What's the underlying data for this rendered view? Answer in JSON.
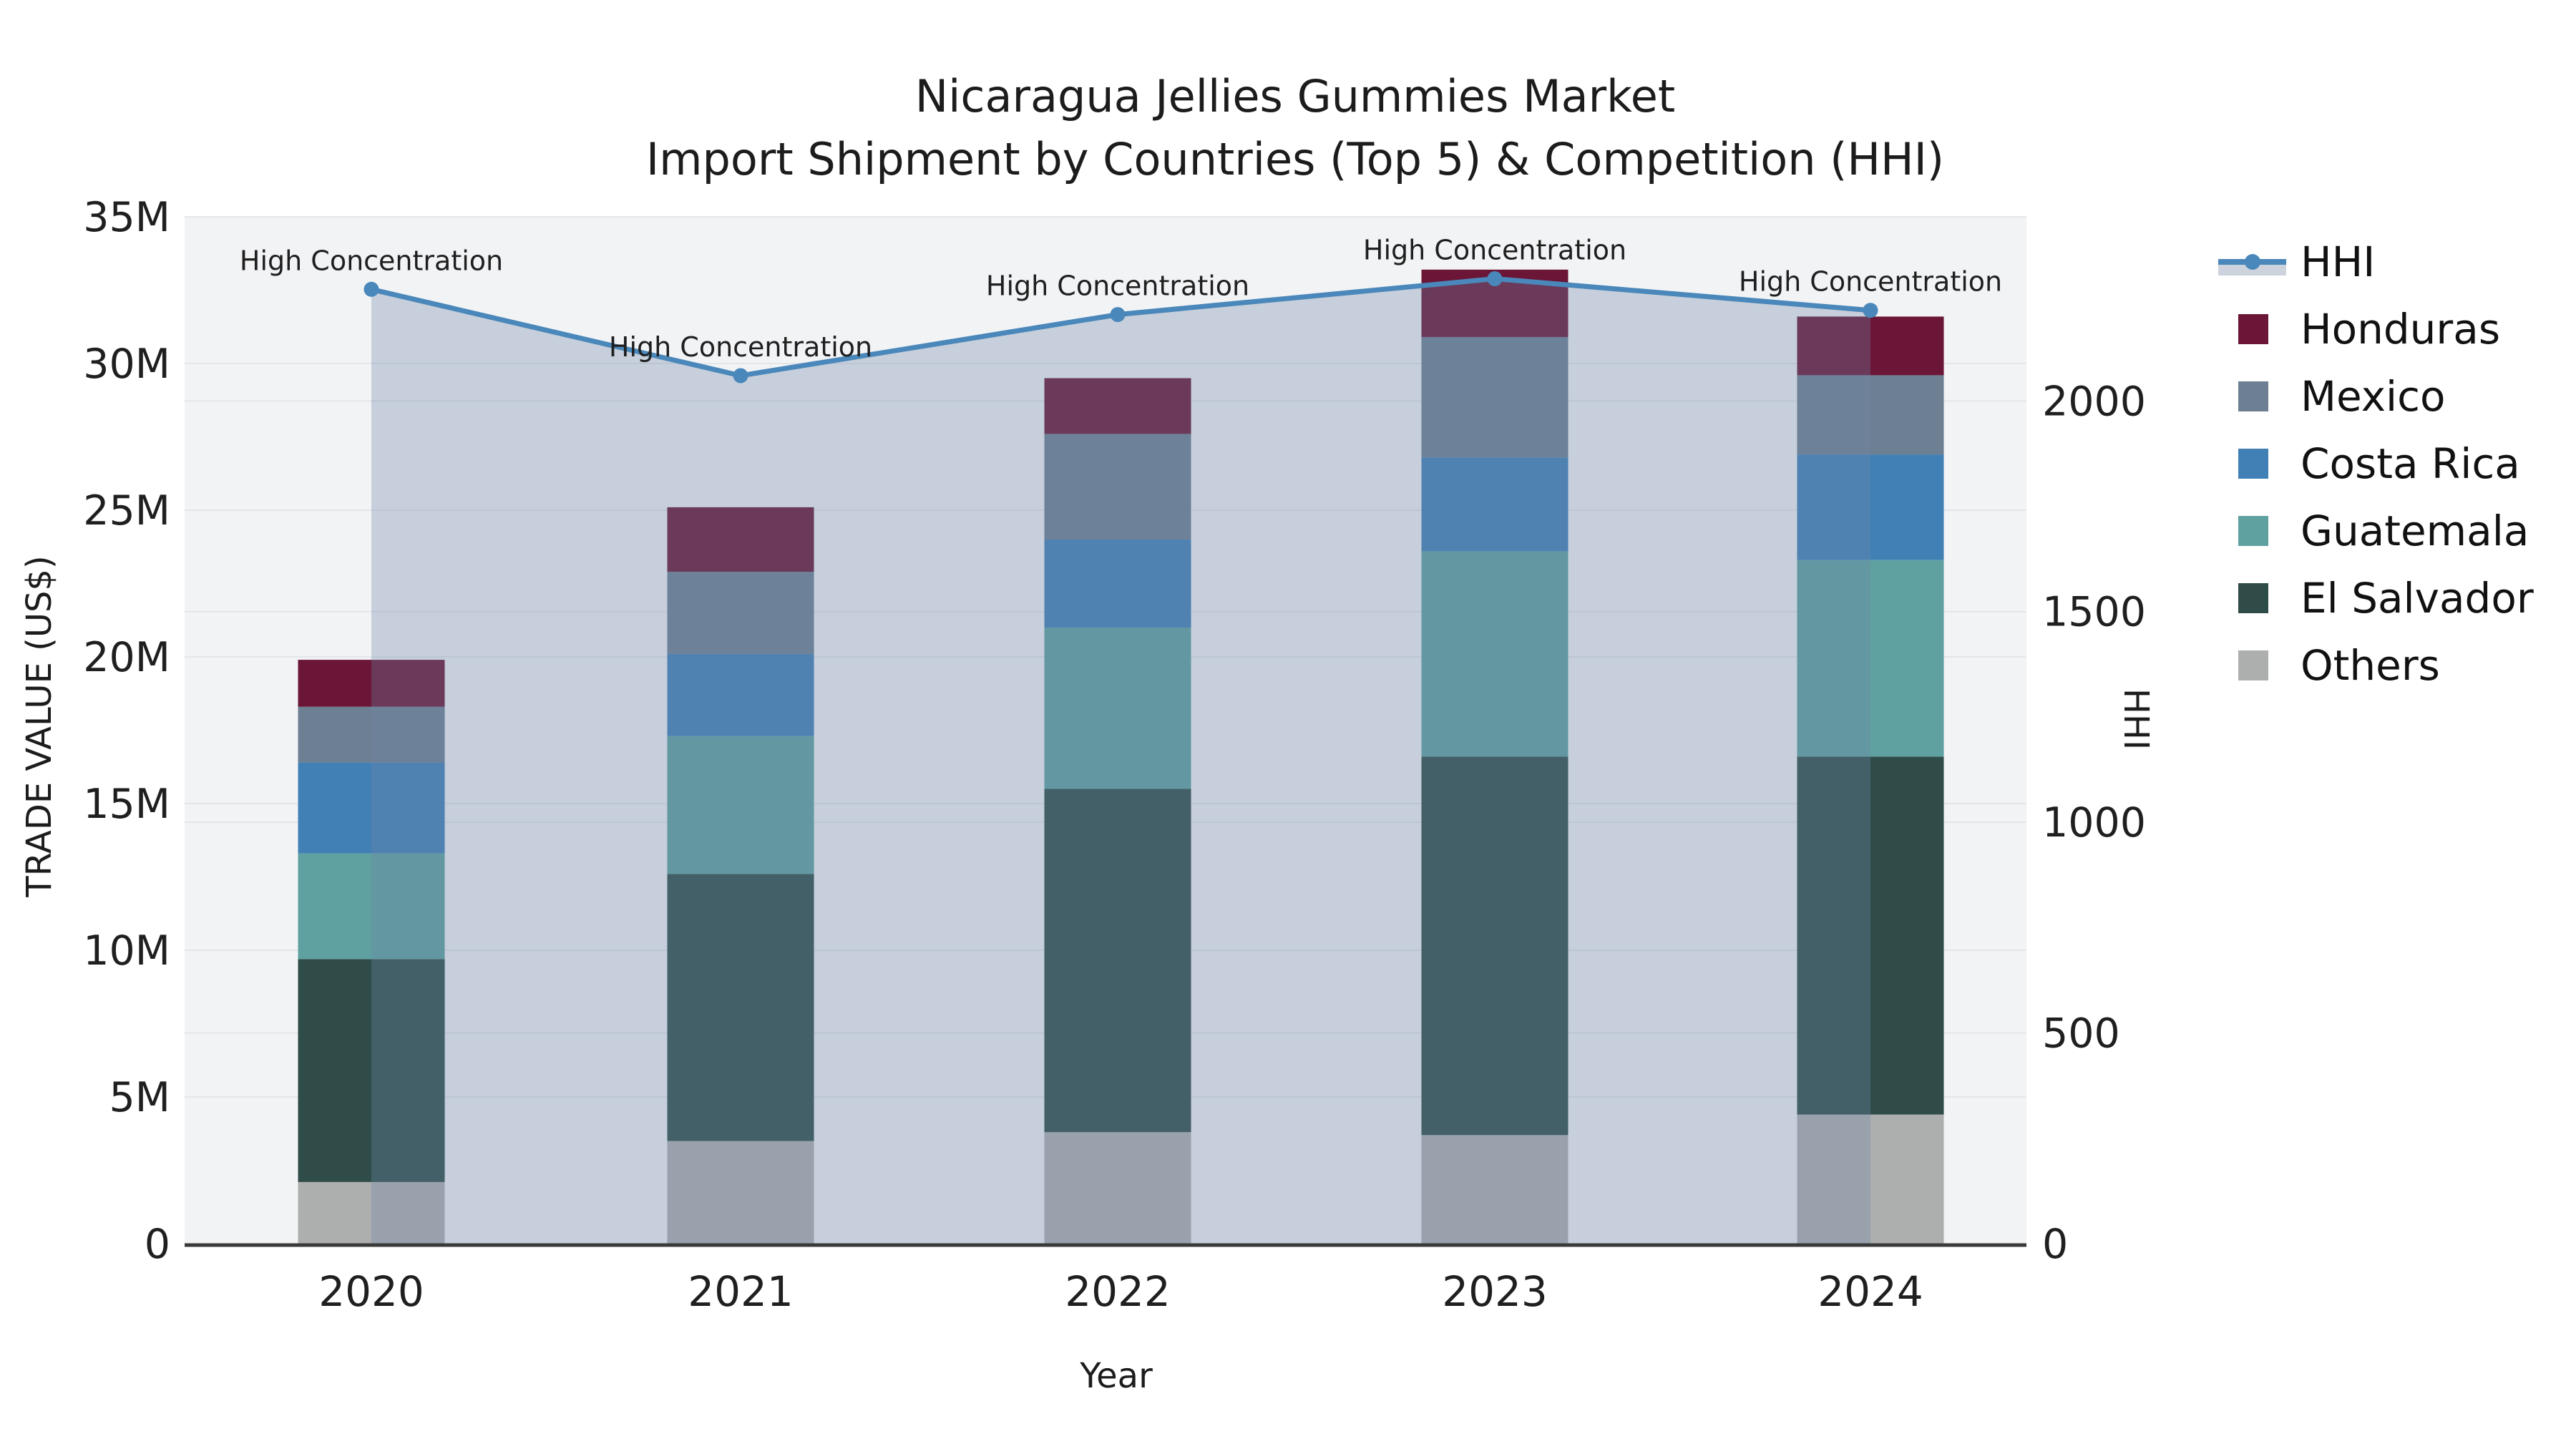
{
  "chart_data": {
    "type": "bar",
    "subtype": "stacked-bars-with-line-area-overlay",
    "title_line1": "Nicaragua Jellies Gummies Market",
    "title_line2": "Import Shipment by Countries (Top 5) & Competition (HHI)",
    "xlabel": "Year",
    "ylabel_left": "TRADE VALUE (US$)",
    "ylabel_right": "HHI",
    "categories": [
      "2020",
      "2021",
      "2022",
      "2023",
      "2024"
    ],
    "bar_unit": "million US$",
    "series": [
      {
        "name": "Honduras",
        "color": "#6b1537",
        "values": [
          1.6,
          2.2,
          1.9,
          2.3,
          2.0
        ]
      },
      {
        "name": "Mexico",
        "color": "#6d7f92",
        "values": [
          1.9,
          2.8,
          3.6,
          4.1,
          2.7
        ]
      },
      {
        "name": "Costa Rica",
        "color": "#4180b5",
        "values": [
          3.1,
          2.8,
          3.0,
          3.2,
          3.6
        ]
      },
      {
        "name": "Guatemala",
        "color": "#5fa1a1",
        "values": [
          3.6,
          4.7,
          5.5,
          7.0,
          6.7
        ]
      },
      {
        "name": "El Salvador",
        "color": "#2f4c48",
        "values": [
          7.6,
          9.1,
          11.7,
          12.9,
          12.2
        ]
      },
      {
        "name": "Others",
        "color": "#adafaf",
        "values": [
          2.1,
          3.5,
          3.8,
          3.7,
          4.4
        ]
      }
    ],
    "stack_order_bottom_to_top": [
      "Others",
      "El Salvador",
      "Guatemala",
      "Costa Rica",
      "Mexico",
      "Honduras"
    ],
    "line_series": {
      "name": "HHI",
      "color": "#4a87ba",
      "area_fill": "rgba(110,135,168,0.33)",
      "values": [
        2265,
        2060,
        2205,
        2290,
        2215
      ]
    },
    "annotations": [
      {
        "year": "2020",
        "text": "High Concentration"
      },
      {
        "year": "2021",
        "text": "High Concentration"
      },
      {
        "year": "2022",
        "text": "High Concentration"
      },
      {
        "year": "2023",
        "text": "High Concentration"
      },
      {
        "year": "2024",
        "text": "High Concentration"
      }
    ],
    "y_left_axis": {
      "tick_labels": [
        "0",
        "5M",
        "10M",
        "15M",
        "20M",
        "25M",
        "30M",
        "35M"
      ],
      "tick_values": [
        0,
        5,
        10,
        15,
        20,
        25,
        30,
        35
      ],
      "range": [
        0,
        35
      ]
    },
    "y_right_axis": {
      "tick_labels": [
        "0",
        "500",
        "1000",
        "1500",
        "2000"
      ],
      "tick_values": [
        0,
        500,
        1000,
        1500,
        2000
      ],
      "range": [
        0,
        2437
      ]
    },
    "legend": [
      {
        "label": "HHI",
        "swatch": "line"
      },
      {
        "label": "Honduras",
        "swatch": "#6b1537"
      },
      {
        "label": "Mexico",
        "swatch": "#6d7f92"
      },
      {
        "label": "Costa Rica",
        "swatch": "#4180b5"
      },
      {
        "label": "Guatemala",
        "swatch": "#5fa1a1"
      },
      {
        "label": "El Salvador",
        "swatch": "#2f4c48"
      },
      {
        "label": "Others",
        "swatch": "#adafaf"
      }
    ],
    "grid": "on",
    "legend_position": "right-top-outside"
  }
}
